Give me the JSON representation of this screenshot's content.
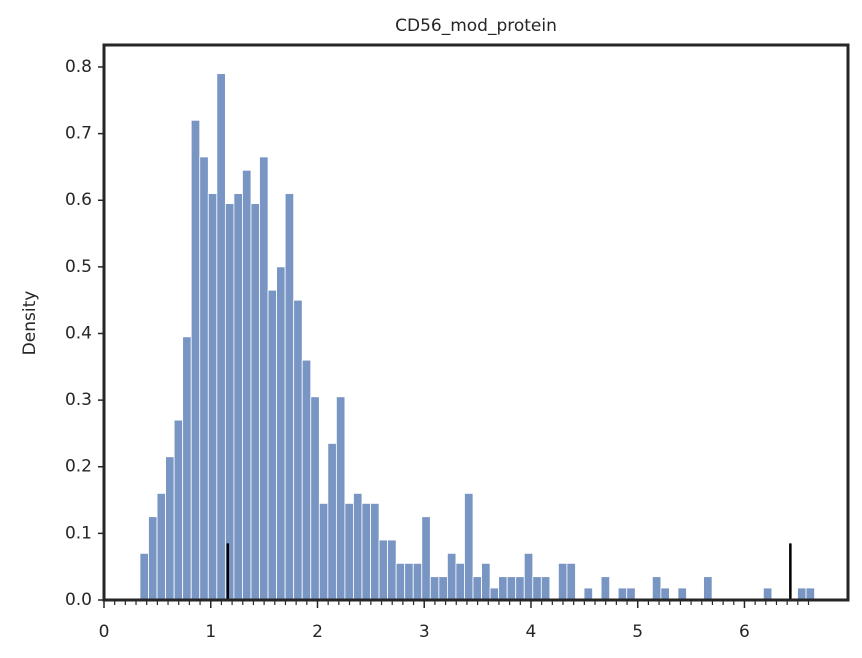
{
  "chart_data": {
    "type": "histogram",
    "title": "CD56_mod_protein",
    "ylabel": "Density",
    "color": "#7995c4",
    "bins": [
      0.337,
      0.417,
      0.497,
      0.577,
      0.657,
      0.737,
      0.817,
      0.897,
      0.977,
      1.057,
      1.137,
      1.217,
      1.297,
      1.377,
      1.457,
      1.537,
      1.617,
      1.697,
      1.777,
      1.857,
      1.937,
      2.017,
      2.097,
      2.177,
      2.257,
      2.337,
      2.417,
      2.497,
      2.577,
      2.657,
      2.737,
      2.817,
      2.897,
      2.977,
      3.057,
      3.137,
      3.217,
      3.297,
      3.377,
      3.457,
      3.537,
      3.617,
      3.697,
      3.777,
      3.857,
      3.937,
      4.017,
      4.097,
      4.177,
      4.257,
      4.337,
      4.417,
      4.497,
      4.577,
      4.657,
      4.737,
      4.817,
      4.897,
      4.977,
      5.057,
      5.137,
      5.217,
      5.297,
      5.377,
      5.457,
      5.537,
      5.617,
      5.697,
      5.777,
      5.857,
      5.937,
      6.017,
      6.097,
      6.177,
      6.257,
      6.337,
      6.417,
      6.497,
      6.577,
      6.657
    ],
    "values": [
      0.07,
      0.125,
      0.16,
      0.215,
      0.27,
      0.395,
      0.72,
      0.665,
      0.61,
      0.79,
      0.595,
      0.61,
      0.645,
      0.595,
      0.665,
      0.465,
      0.5,
      0.61,
      0.45,
      0.36,
      0.305,
      0.145,
      0.235,
      0.305,
      0.145,
      0.16,
      0.145,
      0.145,
      0.09,
      0.09,
      0.055,
      0.055,
      0.055,
      0.125,
      0.035,
      0.035,
      0.07,
      0.055,
      0.16,
      0.035,
      0.055,
      0.018,
      0.035,
      0.035,
      0.035,
      0.07,
      0.035,
      0.035,
      0,
      0.055,
      0.055,
      0,
      0.018,
      0,
      0.035,
      0,
      0.018,
      0.018,
      0,
      0,
      0.035,
      0.018,
      0,
      0.018,
      0,
      0,
      0.035,
      0,
      0,
      0,
      0,
      0,
      0,
      0.018,
      0,
      0,
      0,
      0.018,
      0.018
    ],
    "vlines": [
      1.16,
      6.43
    ],
    "vline_top": 0.085,
    "xlim": [
      0,
      6.97
    ],
    "ylim": [
      0,
      0.833
    ],
    "xticks": [
      0,
      1,
      2,
      3,
      4,
      5,
      6
    ],
    "xminorticks": [
      0.1,
      0.2,
      0.3,
      0.4,
      0.5,
      0.6,
      0.7,
      0.8,
      0.9,
      1.1,
      1.2,
      1.3,
      1.4,
      1.5,
      1.6,
      1.7,
      1.8,
      1.9,
      2.1,
      2.2,
      2.3,
      2.4,
      2.5,
      2.6,
      2.7,
      2.8,
      2.9,
      3.1,
      3.2,
      3.3,
      3.4,
      3.5,
      3.6,
      3.7,
      3.8,
      3.9,
      4.1,
      4.2,
      4.3,
      4.4,
      4.5,
      4.6,
      4.7,
      4.8,
      4.9,
      5.1,
      5.2,
      5.3,
      5.4,
      5.5,
      5.6,
      5.7,
      5.8,
      5.9,
      6.1,
      6.2,
      6.3,
      6.4,
      6.5,
      6.6
    ],
    "yticks": [
      {
        "value": 0,
        "label": "0.0"
      },
      0.1,
      0.2,
      0.3,
      0.4,
      0.5,
      0.6,
      0.7,
      0.8
    ]
  }
}
